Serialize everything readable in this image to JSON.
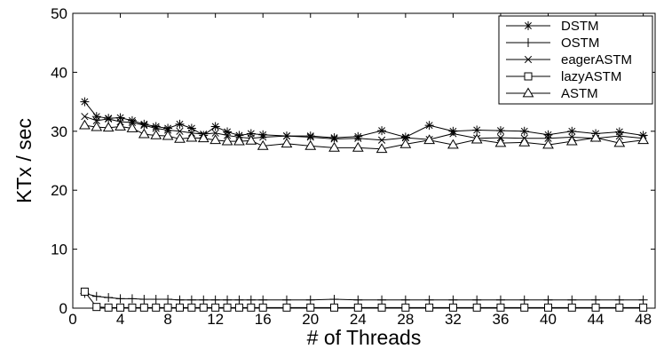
{
  "chart_data": {
    "type": "line",
    "title": "",
    "xlabel": "# of Threads",
    "ylabel": "KTx / sec",
    "xlim": [
      0,
      49
    ],
    "ylim": [
      0,
      50
    ],
    "xticks": [
      0,
      4,
      8,
      12,
      16,
      20,
      24,
      28,
      32,
      36,
      40,
      44,
      48
    ],
    "yticks": [
      0,
      10,
      20,
      30,
      40,
      50
    ],
    "grid": false,
    "legend_position": "top-right",
    "series": [
      {
        "name": "DSTM",
        "marker": "asterisk",
        "x": [
          1,
          2,
          3,
          4,
          5,
          6,
          7,
          8,
          9,
          10,
          11,
          12,
          13,
          14,
          15,
          16,
          18,
          20,
          22,
          24,
          26,
          28,
          30,
          32,
          34,
          36,
          38,
          40,
          42,
          44,
          46,
          48
        ],
        "y": [
          35,
          32.5,
          32.2,
          32.3,
          31.8,
          31.2,
          30.8,
          30.5,
          31.2,
          30.5,
          29.3,
          30.8,
          29.9,
          29.3,
          29.6,
          29.4,
          29.2,
          29.2,
          28.9,
          29.1,
          30.1,
          29.0,
          31.0,
          30.0,
          30.2,
          30.1,
          30.0,
          29.4,
          30.0,
          29.6,
          29.9,
          29.3
        ]
      },
      {
        "name": "OSTM",
        "marker": "plus",
        "x": [
          1,
          2,
          3,
          4,
          5,
          6,
          7,
          8,
          9,
          10,
          11,
          12,
          13,
          14,
          15,
          16,
          18,
          20,
          22,
          24,
          26,
          28,
          30,
          32,
          34,
          36,
          38,
          40,
          42,
          44,
          46,
          48
        ],
        "y": [
          2.5,
          2.0,
          1.8,
          1.6,
          1.6,
          1.5,
          1.5,
          1.5,
          1.4,
          1.4,
          1.4,
          1.4,
          1.4,
          1.4,
          1.4,
          1.4,
          1.4,
          1.4,
          1.5,
          1.4,
          1.4,
          1.4,
          1.4,
          1.4,
          1.4,
          1.4,
          1.4,
          1.4,
          1.4,
          1.4,
          1.4,
          1.4
        ]
      },
      {
        "name": "eagerASTM",
        "marker": "x",
        "x": [
          1,
          2,
          3,
          4,
          5,
          6,
          7,
          8,
          9,
          10,
          11,
          12,
          13,
          14,
          15,
          16,
          18,
          20,
          22,
          24,
          26,
          28,
          30,
          32,
          34,
          36,
          38,
          40,
          42,
          44,
          46,
          48
        ],
        "y": [
          32.5,
          31.8,
          32.1,
          31.6,
          31.5,
          31.0,
          30.5,
          30.2,
          30.0,
          29.7,
          29.5,
          29.7,
          29.3,
          29.0,
          28.8,
          29.0,
          29.2,
          29.0,
          28.7,
          28.8,
          28.5,
          28.9,
          28.6,
          29.6,
          28.8,
          28.9,
          28.8,
          28.8,
          29.0,
          28.8,
          29.2,
          28.8
        ]
      },
      {
        "name": "lazyASTM",
        "marker": "square",
        "x": [
          1,
          2,
          3,
          4,
          5,
          6,
          7,
          8,
          9,
          10,
          11,
          12,
          13,
          14,
          15,
          16,
          18,
          20,
          22,
          24,
          26,
          28,
          30,
          32,
          34,
          36,
          38,
          40,
          42,
          44,
          46,
          48
        ],
        "y": [
          2.8,
          0.2,
          0.1,
          0.1,
          0.1,
          0.1,
          0.1,
          0.1,
          0.1,
          0.1,
          0.1,
          0.1,
          0.1,
          0.1,
          0.1,
          0.1,
          0.1,
          0.1,
          0.1,
          0.1,
          0.1,
          0.1,
          0.1,
          0.1,
          0.1,
          0.1,
          0.1,
          0.1,
          0.1,
          0.1,
          0.1,
          0.1
        ]
      },
      {
        "name": "ASTM",
        "marker": "triangle",
        "x": [
          1,
          2,
          3,
          4,
          5,
          6,
          7,
          8,
          9,
          10,
          11,
          12,
          13,
          14,
          15,
          16,
          18,
          20,
          22,
          24,
          26,
          28,
          30,
          32,
          34,
          36,
          38,
          40,
          42,
          44,
          46,
          48
        ],
        "y": [
          31.0,
          30.7,
          30.6,
          30.8,
          30.5,
          29.5,
          29.3,
          29.2,
          28.7,
          28.9,
          28.8,
          28.5,
          28.3,
          28.3,
          28.4,
          27.5,
          27.9,
          27.5,
          27.2,
          27.2,
          27.0,
          27.8,
          28.5,
          27.7,
          28.6,
          28.0,
          28.1,
          27.7,
          28.3,
          28.9,
          28.0,
          28.5
        ]
      }
    ]
  }
}
